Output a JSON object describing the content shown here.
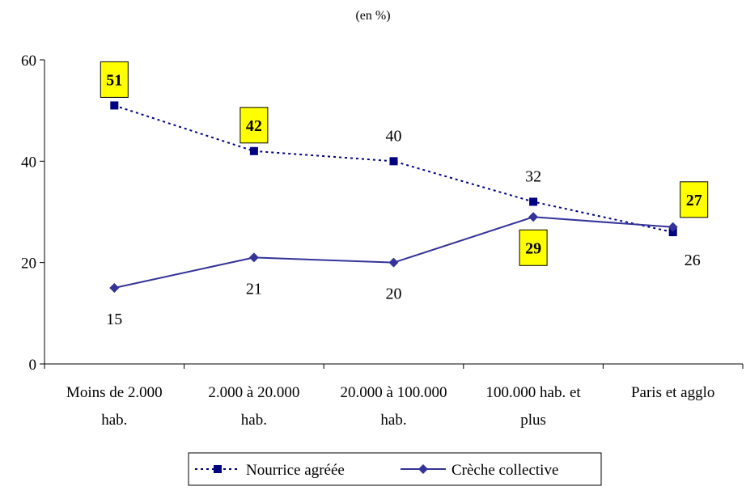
{
  "chart_data": {
    "type": "line",
    "title": "",
    "subtitle": "(en %)",
    "xlabel": "",
    "ylabel": "",
    "categories": [
      [
        "Moins de 2.000",
        "hab."
      ],
      [
        "2.000 à 20.000",
        "hab."
      ],
      [
        "20.000 à 100.000",
        "hab."
      ],
      [
        "100.000 hab. et",
        "plus"
      ],
      [
        "Paris et agglo"
      ]
    ],
    "ylim": [
      0,
      60
    ],
    "yticks": [
      0,
      20,
      40,
      60
    ],
    "grid": false,
    "legend_position": "bottom",
    "series": [
      {
        "name": "Nourrice agréée",
        "values": [
          51,
          42,
          40,
          32,
          26
        ],
        "color": "#000080",
        "line_style": "dotted",
        "marker": "square",
        "highlighted": [
          true,
          true,
          false,
          false,
          false
        ]
      },
      {
        "name": "Crèche collective",
        "values": [
          15,
          21,
          20,
          29,
          27
        ],
        "color": "#333399",
        "line_style": "solid",
        "marker": "diamond",
        "highlighted": [
          false,
          false,
          false,
          true,
          true
        ]
      }
    ],
    "highlight_color": "#ffff00"
  }
}
